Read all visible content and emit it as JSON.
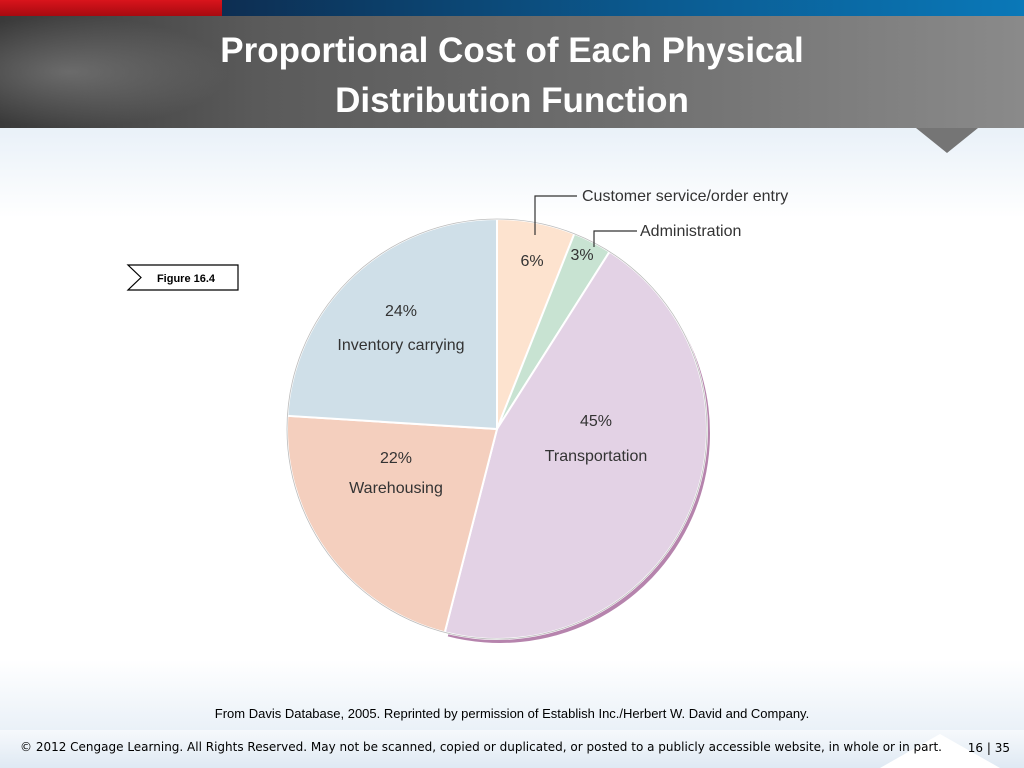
{
  "slide": {
    "title_line1": "Proportional Cost of Each Physical",
    "title_line2": "Distribution Function",
    "figure_label": "Figure 16.4",
    "source": "From Davis Database, 2005.  Reprinted by permission of Establish Inc./Herbert W. David and Company.",
    "copyright": "© 2012 Cengage Learning. All Rights Reserved. May not be scanned, copied or duplicated, or posted to a publicly accessible website, in whole or in part.",
    "page_current": "16",
    "page_sep": "|",
    "page_total": "35"
  },
  "colors": {
    "accent_red": "#d9141c",
    "accent_blue": "#0b5b91"
  },
  "chart_data": {
    "type": "pie",
    "start": "top, clockwise",
    "slices": [
      {
        "pct_label": "6%",
        "label": "Customer service/order entry",
        "value": 6,
        "color": "#fde3cf",
        "label_mode": "callout"
      },
      {
        "pct_label": "3%",
        "label": "Administration",
        "value": 3,
        "color": "#c8e3d2",
        "label_mode": "callout"
      },
      {
        "pct_label": "45%",
        "label": "Transportation",
        "value": 45,
        "color": "#e3d2e5",
        "label_mode": "inside"
      },
      {
        "pct_label": "22%",
        "label": "Warehousing",
        "value": 22,
        "color": "#f4cfbe",
        "label_mode": "inside"
      },
      {
        "pct_label": "24%",
        "label": "Inventory carrying",
        "value": 24,
        "color": "#cfdfe8",
        "label_mode": "inside"
      }
    ]
  }
}
